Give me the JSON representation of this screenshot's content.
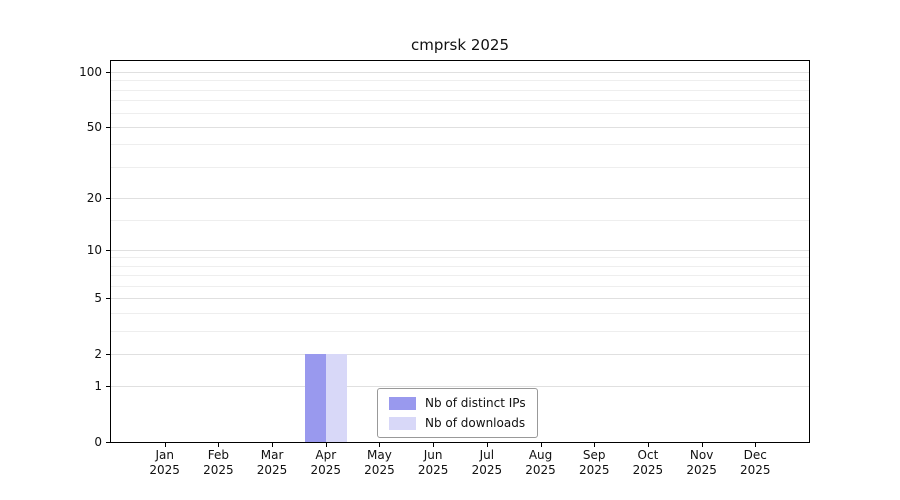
{
  "title": "cmprsk 2025",
  "chart_data": {
    "type": "bar",
    "title": "cmprsk 2025",
    "categories": [
      "Jan",
      "Feb",
      "Mar",
      "Apr",
      "May",
      "Jun",
      "Jul",
      "Aug",
      "Sep",
      "Oct",
      "Nov",
      "Dec"
    ],
    "year": "2025",
    "series": [
      {
        "name": "Nb of distinct IPs",
        "color": "#9999ee",
        "values": [
          0,
          0,
          0,
          2,
          0,
          0,
          0,
          0,
          0,
          0,
          0,
          0
        ]
      },
      {
        "name": "Nb of downloads",
        "color": "#d8d8f8",
        "values": [
          0,
          0,
          0,
          2,
          0,
          0,
          0,
          0,
          0,
          0,
          0,
          0
        ]
      }
    ],
    "yscale": "log10(x+1)",
    "y_ticks": [
      0,
      1,
      2,
      5,
      10,
      20,
      50,
      100
    ],
    "y_minor_gridlines": [
      3,
      4,
      6,
      7,
      8,
      9,
      15,
      30,
      40,
      60,
      70,
      80,
      90
    ],
    "ymax": 115,
    "xlabel": "",
    "ylabel": "",
    "grid": "horizontal",
    "legend_position": "lower-center-inside",
    "colors": {
      "grid_major": "#e0e0e0",
      "grid_minor": "#eeeeee",
      "axis": "#000000"
    }
  }
}
